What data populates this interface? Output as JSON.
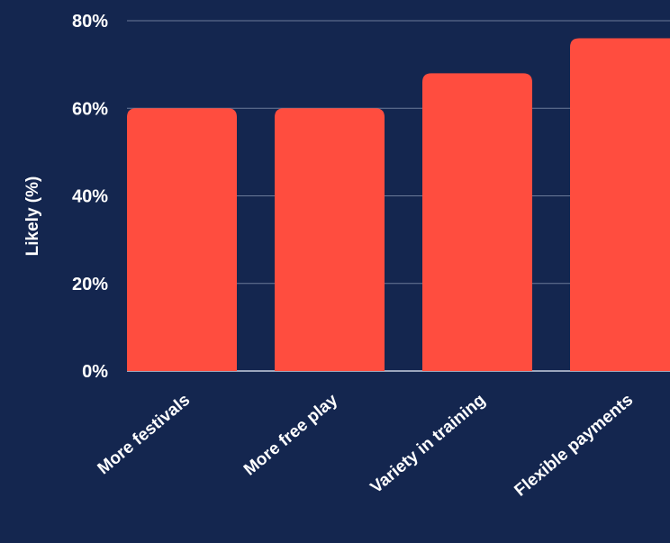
{
  "colors": {
    "background": "#14264f",
    "bar": "#ff4d3f",
    "grid": "#6b7a99",
    "baseline": "#c8d0e0",
    "text": "#ffffff"
  },
  "chart_data": {
    "type": "bar",
    "categories": [
      "More festivals",
      "More free play",
      "Variety in training",
      "Flexible payments"
    ],
    "values": [
      60,
      60,
      68,
      76
    ],
    "ylabel": "Likely (%)",
    "ylim": [
      0,
      80
    ],
    "yticks": [
      0,
      20,
      40,
      60,
      80
    ],
    "ytick_labels": [
      "0%",
      "20%",
      "40%",
      "60%",
      "80%"
    ],
    "grid": true,
    "legend": "none"
  }
}
